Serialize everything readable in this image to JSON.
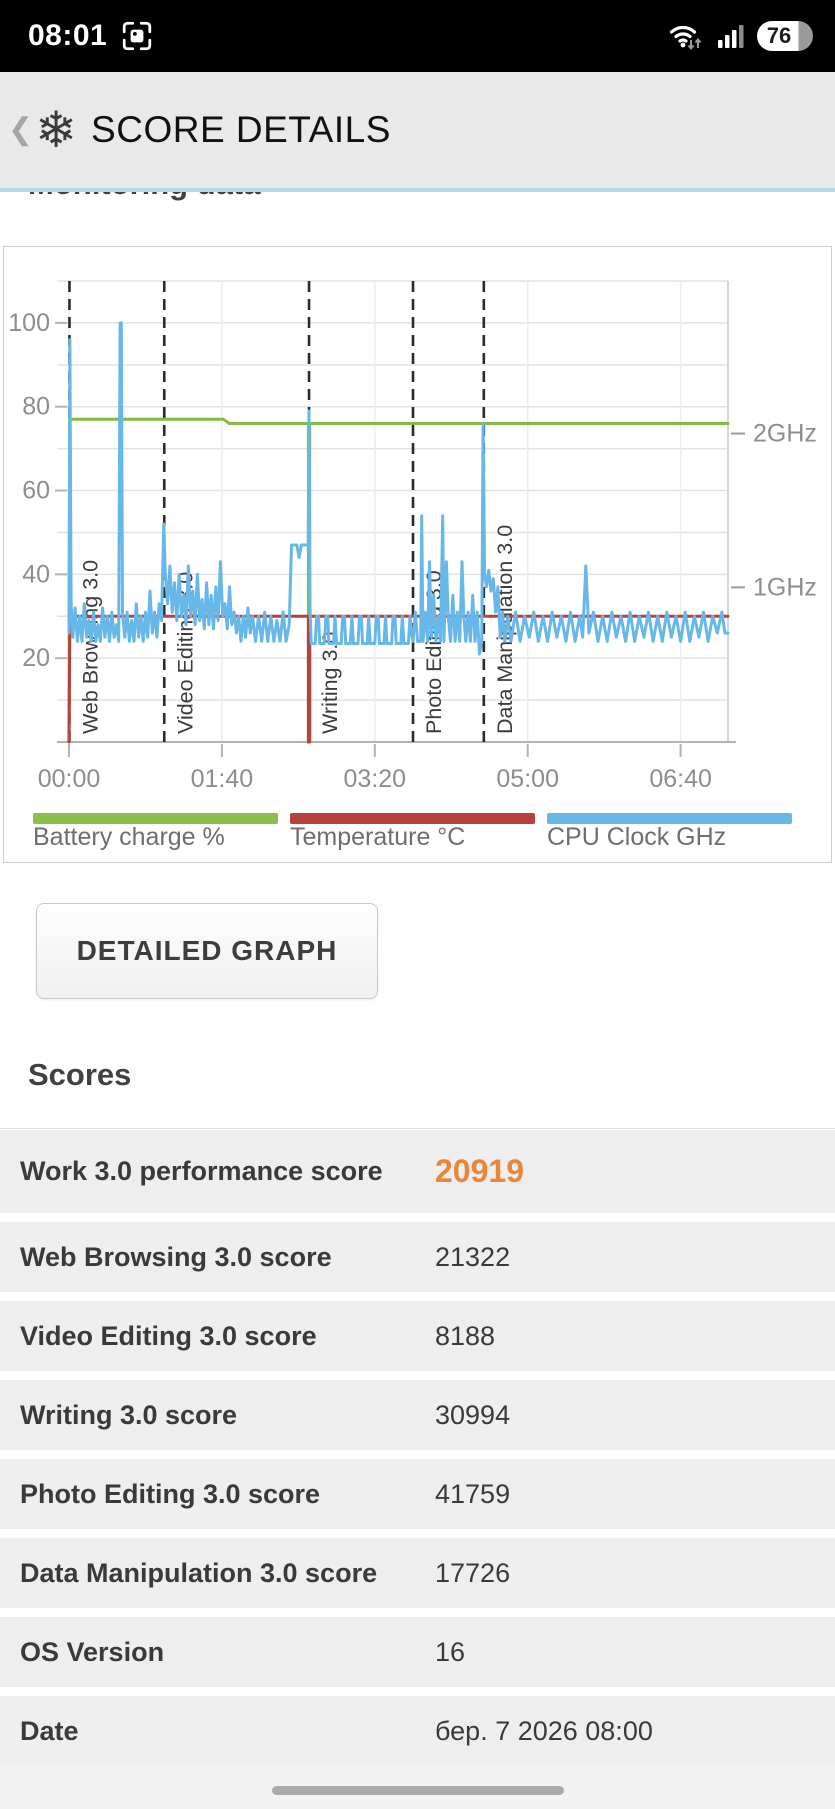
{
  "status_bar": {
    "time": "08:01",
    "battery_percent": "76"
  },
  "header": {
    "back_icon": "❮",
    "app_icon": "❄",
    "title": "SCORE DETAILS"
  },
  "monitoring": {
    "title": "Monitoring data"
  },
  "detailed_graph_button": "DETAILED GRAPH",
  "scores": {
    "title": "Scores",
    "rows": [
      {
        "label": "Work 3.0 performance score",
        "value": "20919"
      },
      {
        "label": "Web Browsing 3.0 score",
        "value": "21322"
      },
      {
        "label": "Video Editing 3.0 score",
        "value": "8188"
      },
      {
        "label": "Writing 3.0 score",
        "value": "30994"
      },
      {
        "label": "Photo Editing 3.0 score",
        "value": "41759"
      },
      {
        "label": "Data Manipulation 3.0 score",
        "value": "17726"
      },
      {
        "label": "OS Version",
        "value": "16"
      },
      {
        "label": "Date",
        "value": "бер. 7 2026 08:00"
      }
    ]
  },
  "chart_data": {
    "type": "line",
    "title": "Monitoring data",
    "xlabel": "",
    "ylabel": "",
    "grid": true,
    "legend_position": "bottom",
    "x_axis": {
      "unit": "time mm:ss",
      "ticks": [
        "00:00",
        "01:40",
        "03:20",
        "05:00",
        "06:40"
      ],
      "tick_minutes": [
        0,
        100,
        200,
        300,
        400
      ],
      "max_minutes": 431
    },
    "y_axis": {
      "ticks": [
        20,
        40,
        60,
        80,
        100
      ],
      "range": [
        0,
        110
      ]
    },
    "right_axis": {
      "labels": [
        {
          "text": "2GHz",
          "value": 73.6
        },
        {
          "text": "1GHz",
          "value": 36.9
        }
      ]
    },
    "phases": [
      {
        "label": "Web Browsing 3.0",
        "t": 0.3
      },
      {
        "label": "Video Editing 3.0",
        "t": 62.3
      },
      {
        "label": "Writing 3.0",
        "t": 157
      },
      {
        "label": "Photo Editing 3.0",
        "t": 225
      },
      {
        "label": "Data Manipulation 3.0",
        "t": 271.3
      }
    ],
    "legend": [
      {
        "label": "Battery charge %",
        "color": "#8bbf4a"
      },
      {
        "label": "Temperature °C",
        "color": "#b5423e"
      },
      {
        "label": "CPU Clock GHz",
        "color": "#67b7e8"
      }
    ],
    "series": [
      {
        "name": "Battery charge %",
        "color": "#82bb41",
        "width": 3,
        "points": [
          [
            0,
            0
          ],
          [
            0.4,
            77
          ],
          [
            101,
            77
          ],
          [
            105,
            76
          ],
          [
            156.6,
            76
          ],
          [
            156.6,
            0
          ],
          [
            157.4,
            0
          ],
          [
            157.4,
            76
          ],
          [
            431,
            76
          ]
        ]
      },
      {
        "name": "Temperature °C",
        "color": "#b5423e",
        "width": 3,
        "points": [
          [
            0,
            0
          ],
          [
            0.6,
            30
          ],
          [
            156.6,
            30
          ],
          [
            156.6,
            0
          ],
          [
            157.4,
            0
          ],
          [
            157.4,
            30
          ],
          [
            431,
            30
          ]
        ]
      },
      {
        "name": "CPU Clock GHz",
        "color": "#67b7e8",
        "width": 3,
        "points": [
          [
            0,
            26
          ],
          [
            0.6,
            96
          ],
          [
            1.4,
            33
          ],
          [
            2.5,
            25
          ],
          [
            4,
            32
          ],
          [
            5.5,
            24
          ],
          [
            7,
            30
          ],
          [
            8.5,
            24
          ],
          [
            10,
            33
          ],
          [
            11.5,
            25
          ],
          [
            13,
            29
          ],
          [
            14.5,
            24
          ],
          [
            16,
            31
          ],
          [
            17.5,
            24
          ],
          [
            19,
            28
          ],
          [
            20.5,
            24
          ],
          [
            22,
            32
          ],
          [
            23.5,
            25
          ],
          [
            25,
            30
          ],
          [
            26.5,
            24
          ],
          [
            28,
            31
          ],
          [
            29.5,
            25
          ],
          [
            31,
            28
          ],
          [
            32.5,
            24
          ],
          [
            33.4,
            100
          ],
          [
            34.2,
            100
          ],
          [
            35,
            31
          ],
          [
            36.5,
            25
          ],
          [
            38,
            31
          ],
          [
            39.5,
            24
          ],
          [
            41,
            29
          ],
          [
            42.5,
            24
          ],
          [
            44,
            33
          ],
          [
            45.5,
            25
          ],
          [
            47,
            30
          ],
          [
            48.5,
            24
          ],
          [
            50,
            31
          ],
          [
            51.5,
            25
          ],
          [
            53,
            36
          ],
          [
            54.5,
            26
          ],
          [
            56,
            31
          ],
          [
            57.5,
            25
          ],
          [
            59,
            33
          ],
          [
            60.5,
            29
          ],
          [
            62,
            52
          ],
          [
            63,
            40
          ],
          [
            64.5,
            33
          ],
          [
            66,
            42
          ],
          [
            67.5,
            31
          ],
          [
            69,
            38
          ],
          [
            70.5,
            29
          ],
          [
            72,
            40
          ],
          [
            73.5,
            30
          ],
          [
            75,
            35
          ],
          [
            76.5,
            28
          ],
          [
            78,
            42
          ],
          [
            79.5,
            30
          ],
          [
            81,
            36
          ],
          [
            82.5,
            28
          ],
          [
            84,
            40
          ],
          [
            85.5,
            29
          ],
          [
            87,
            34
          ],
          [
            88.5,
            27
          ],
          [
            90,
            38
          ],
          [
            91.5,
            28
          ],
          [
            93,
            35
          ],
          [
            94.5,
            27
          ],
          [
            96,
            37
          ],
          [
            97.5,
            29
          ],
          [
            99,
            43
          ],
          [
            100.5,
            30
          ],
          [
            102,
            33
          ],
          [
            103.5,
            27
          ],
          [
            105,
            37
          ],
          [
            106.5,
            28
          ],
          [
            108,
            31
          ],
          [
            109.5,
            26
          ],
          [
            111,
            30
          ],
          [
            112.5,
            24
          ],
          [
            114,
            30
          ],
          [
            115.5,
            25
          ],
          [
            117,
            32
          ],
          [
            118.5,
            26
          ],
          [
            120,
            30
          ],
          [
            122,
            24
          ],
          [
            124,
            30
          ],
          [
            126,
            24
          ],
          [
            128,
            31
          ],
          [
            130,
            24
          ],
          [
            132,
            30
          ],
          [
            134,
            24
          ],
          [
            136,
            29
          ],
          [
            138,
            24
          ],
          [
            140,
            31
          ],
          [
            142,
            24
          ],
          [
            144,
            28
          ],
          [
            145.5,
            47
          ],
          [
            149,
            47
          ],
          [
            150.5,
            44
          ],
          [
            152,
            47
          ],
          [
            156.5,
            47
          ],
          [
            156.9,
            79
          ],
          [
            157.6,
            32
          ],
          [
            158.4,
            23.5
          ],
          [
            161,
            23.5
          ],
          [
            162,
            30
          ],
          [
            163.2,
            30
          ],
          [
            164,
            23.5
          ],
          [
            167,
            23.5
          ],
          [
            168,
            30
          ],
          [
            169.2,
            30
          ],
          [
            170,
            23.5
          ],
          [
            173,
            23.5
          ],
          [
            174,
            30
          ],
          [
            175,
            23.5
          ],
          [
            178,
            23.5
          ],
          [
            179,
            30
          ],
          [
            180.2,
            30
          ],
          [
            181,
            23.5
          ],
          [
            184,
            23.5
          ],
          [
            185,
            30
          ],
          [
            186,
            23.5
          ],
          [
            189,
            23.5
          ],
          [
            190,
            30
          ],
          [
            191.2,
            30
          ],
          [
            192,
            23.5
          ],
          [
            195,
            23.5
          ],
          [
            196,
            30
          ],
          [
            197,
            23.5
          ],
          [
            200,
            23.5
          ],
          [
            201,
            30
          ],
          [
            202.2,
            30
          ],
          [
            203,
            23.5
          ],
          [
            206,
            23.5
          ],
          [
            207,
            30
          ],
          [
            208,
            23.5
          ],
          [
            211,
            23.5
          ],
          [
            212,
            30
          ],
          [
            213.2,
            30
          ],
          [
            214,
            23.5
          ],
          [
            217,
            23.5
          ],
          [
            218,
            30
          ],
          [
            219,
            23.5
          ],
          [
            222,
            23.5
          ],
          [
            223,
            30
          ],
          [
            224,
            26
          ],
          [
            225,
            24
          ],
          [
            226.5,
            31
          ],
          [
            228,
            24
          ],
          [
            230,
            24
          ],
          [
            230.7,
            54
          ],
          [
            231.5,
            24
          ],
          [
            233,
            31
          ],
          [
            234.5,
            24
          ],
          [
            235.8,
            43
          ],
          [
            237,
            25
          ],
          [
            238.5,
            35
          ],
          [
            240,
            24
          ],
          [
            241.5,
            30
          ],
          [
            243,
            24
          ],
          [
            244.4,
            54
          ],
          [
            245.2,
            24
          ],
          [
            246.8,
            43
          ],
          [
            248,
            30
          ],
          [
            249.5,
            24
          ],
          [
            251,
            35
          ],
          [
            252.5,
            24
          ],
          [
            254,
            31
          ],
          [
            255.5,
            24
          ],
          [
            257,
            43
          ],
          [
            258.2,
            30
          ],
          [
            259.5,
            24
          ],
          [
            261,
            31
          ],
          [
            262.5,
            24
          ],
          [
            264,
            35
          ],
          [
            265.5,
            24
          ],
          [
            267,
            31
          ],
          [
            268.5,
            21
          ],
          [
            270,
            24
          ],
          [
            270.8,
            76
          ],
          [
            271.8,
            40
          ],
          [
            273,
            37
          ],
          [
            274.5,
            41
          ],
          [
            276,
            36
          ],
          [
            277.5,
            39
          ],
          [
            279,
            31
          ],
          [
            280.5,
            37
          ],
          [
            282,
            25
          ],
          [
            283.5,
            31
          ],
          [
            285,
            24
          ],
          [
            287,
            30
          ],
          [
            289,
            24
          ],
          [
            292,
            31
          ],
          [
            295,
            24
          ],
          [
            298,
            30
          ],
          [
            301,
            25
          ],
          [
            304,
            31
          ],
          [
            307,
            24
          ],
          [
            310,
            30
          ],
          [
            313,
            24
          ],
          [
            316,
            31
          ],
          [
            319,
            25
          ],
          [
            322,
            30
          ],
          [
            325,
            24
          ],
          [
            328,
            31
          ],
          [
            331,
            24
          ],
          [
            334,
            30
          ],
          [
            336,
            25
          ],
          [
            338,
            42
          ],
          [
            340,
            26
          ],
          [
            343,
            31
          ],
          [
            346,
            24
          ],
          [
            349,
            30
          ],
          [
            352,
            24
          ],
          [
            355,
            31
          ],
          [
            358,
            25
          ],
          [
            361,
            30
          ],
          [
            364,
            24
          ],
          [
            367,
            31
          ],
          [
            370,
            24
          ],
          [
            373,
            30
          ],
          [
            376,
            25
          ],
          [
            379,
            31
          ],
          [
            382,
            24
          ],
          [
            385,
            30
          ],
          [
            388,
            24
          ],
          [
            391,
            31
          ],
          [
            394,
            25
          ],
          [
            397,
            30
          ],
          [
            400,
            24
          ],
          [
            403,
            31
          ],
          [
            406,
            24
          ],
          [
            409,
            30
          ],
          [
            412,
            25
          ],
          [
            415,
            31
          ],
          [
            418,
            24
          ],
          [
            421,
            30
          ],
          [
            424,
            26
          ],
          [
            427,
            31
          ],
          [
            429,
            26
          ],
          [
            431,
            26
          ]
        ]
      }
    ]
  }
}
